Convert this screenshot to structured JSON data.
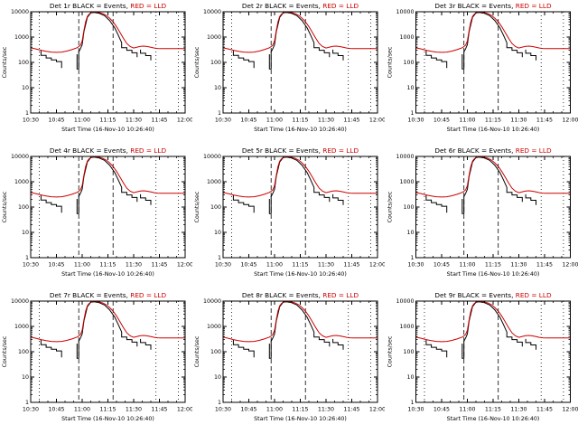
{
  "page": {
    "background": "#ffffff"
  },
  "chart_data": {
    "type": "line",
    "layout": "3x3-grid",
    "grid": false,
    "legend": "in-title",
    "panels": [
      {
        "det": "Det 1r"
      },
      {
        "det": "Det 2r"
      },
      {
        "det": "Det 3r"
      },
      {
        "det": "Det 4r"
      },
      {
        "det": "Det 5r"
      },
      {
        "det": "Det 6r"
      },
      {
        "det": "Det 7r"
      },
      {
        "det": "Det 8r"
      },
      {
        "det": "Det 9r"
      }
    ],
    "title_black": "BLACK = Events,",
    "title_red": "RED = LLD",
    "title_red_color": "#cc0000",
    "xlabel": "Start Time (16-Nov-10 10:26:40)",
    "ylabel": "Counts/sec",
    "x_tick_labels": [
      "10:30",
      "10:45",
      "11:00",
      "11:15",
      "11:30",
      "11:45",
      "12:00"
    ],
    "x_tick_minutes": [
      0,
      15,
      30,
      45,
      60,
      75,
      90
    ],
    "x_minor_step_minutes": 5,
    "x_range_minutes": [
      0,
      90
    ],
    "ylog": true,
    "ylim": [
      1,
      10000
    ],
    "y_ticks": [
      1,
      10,
      100,
      1000,
      10000
    ],
    "vlines": [
      {
        "minute": 5,
        "style": "dotted"
      },
      {
        "minute": 28,
        "style": "dashed"
      },
      {
        "minute": 48,
        "style": "dashed"
      },
      {
        "minute": 73,
        "style": "dotted"
      },
      {
        "minute": 86,
        "style": "dotted"
      }
    ],
    "series": [
      {
        "name": "Events",
        "color": "#000000",
        "points": [
          [
            6,
            300
          ],
          [
            6,
            190
          ],
          [
            9,
            190
          ],
          [
            9,
            150
          ],
          [
            12,
            150
          ],
          [
            12,
            125
          ],
          [
            15,
            125
          ],
          [
            15,
            108
          ],
          [
            18,
            108
          ],
          [
            18,
            60
          ],
          null,
          [
            27,
            210
          ],
          [
            27,
            55
          ],
          [
            28,
            55
          ],
          [
            28,
            260
          ],
          [
            29,
            350
          ],
          [
            30,
            500
          ],
          [
            31,
            1600
          ],
          [
            33,
            6000
          ],
          [
            35,
            9000
          ],
          [
            37,
            9400
          ],
          [
            40,
            8600
          ],
          [
            43,
            7000
          ],
          [
            46,
            4500
          ],
          [
            49,
            2300
          ],
          [
            51,
            1200
          ],
          [
            53,
            600
          ],
          [
            53,
            380
          ],
          [
            56,
            380
          ],
          [
            56,
            300
          ],
          [
            59,
            300
          ],
          [
            59,
            240
          ],
          [
            62,
            240
          ],
          [
            62,
            160
          ],
          null,
          [
            64,
            320
          ],
          [
            64,
            230
          ],
          [
            67,
            230
          ],
          [
            67,
            185
          ],
          [
            70,
            185
          ],
          [
            70,
            120
          ]
        ]
      },
      {
        "name": "LLD",
        "color": "#cc0000",
        "points": [
          [
            0,
            380
          ],
          [
            3,
            340
          ],
          [
            6,
            300
          ],
          [
            9,
            272
          ],
          [
            12,
            256
          ],
          [
            15,
            250
          ],
          [
            18,
            256
          ],
          [
            21,
            280
          ],
          [
            24,
            320
          ],
          [
            27,
            380
          ],
          [
            28,
            420
          ],
          [
            29,
            480
          ],
          [
            30,
            700
          ],
          [
            31,
            1800
          ],
          [
            32,
            4000
          ],
          [
            33,
            6500
          ],
          [
            34,
            8000
          ],
          [
            35,
            9000
          ],
          [
            36,
            9600
          ],
          [
            37,
            9800
          ],
          [
            38,
            9700
          ],
          [
            40,
            9200
          ],
          [
            42,
            8400
          ],
          [
            44,
            7200
          ],
          [
            46,
            5600
          ],
          [
            48,
            4000
          ],
          [
            50,
            2600
          ],
          [
            52,
            1550
          ],
          [
            54,
            900
          ],
          [
            56,
            560
          ],
          [
            58,
            420
          ],
          [
            60,
            370
          ],
          [
            62,
            400
          ],
          [
            64,
            430
          ],
          [
            66,
            440
          ],
          [
            68,
            420
          ],
          [
            70,
            395
          ],
          [
            72,
            370
          ],
          [
            74,
            355
          ],
          [
            76,
            348
          ],
          [
            79,
            348
          ],
          [
            82,
            352
          ],
          [
            85,
            350
          ],
          [
            88,
            352
          ],
          [
            90,
            353
          ]
        ]
      }
    ]
  }
}
